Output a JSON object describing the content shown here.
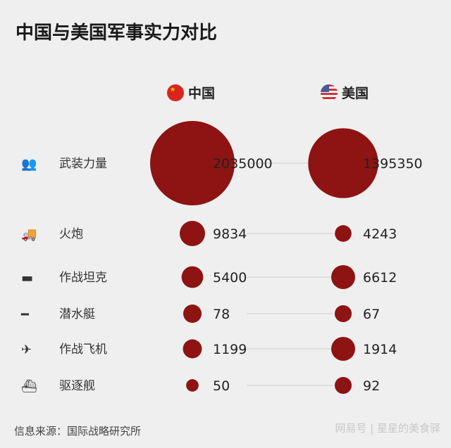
{
  "title": "中国与美国军事实力对比",
  "colors": {
    "bubble": "#8e1313",
    "background": "#efefef",
    "connector": "#d8d8d8"
  },
  "chart_data": {
    "type": "bubble-comparison",
    "series": [
      {
        "name": "中国",
        "flag": "china-flag-icon"
      },
      {
        "name": "美国",
        "flag": "usa-flag-icon"
      }
    ],
    "categories": [
      {
        "label": "武装力量",
        "icon": "soldiers-icon",
        "values": [
          2035000,
          1395350
        ]
      },
      {
        "label": "火炮",
        "icon": "rocket-launcher-icon",
        "values": [
          9834,
          4243
        ]
      },
      {
        "label": "作战坦克",
        "icon": "tank-icon",
        "values": [
          5400,
          6612
        ]
      },
      {
        "label": "潜水艇",
        "icon": "submarine-icon",
        "values": [
          78,
          67
        ]
      },
      {
        "label": "作战飞机",
        "icon": "fighter-jet-icon",
        "values": [
          1199,
          1914
        ]
      },
      {
        "label": "驱逐舰",
        "icon": "destroyer-icon",
        "values": [
          50,
          92
        ]
      }
    ]
  },
  "source": "信息来源：国际战略研究所",
  "watermark": "网易号 | 星星的美食驿"
}
